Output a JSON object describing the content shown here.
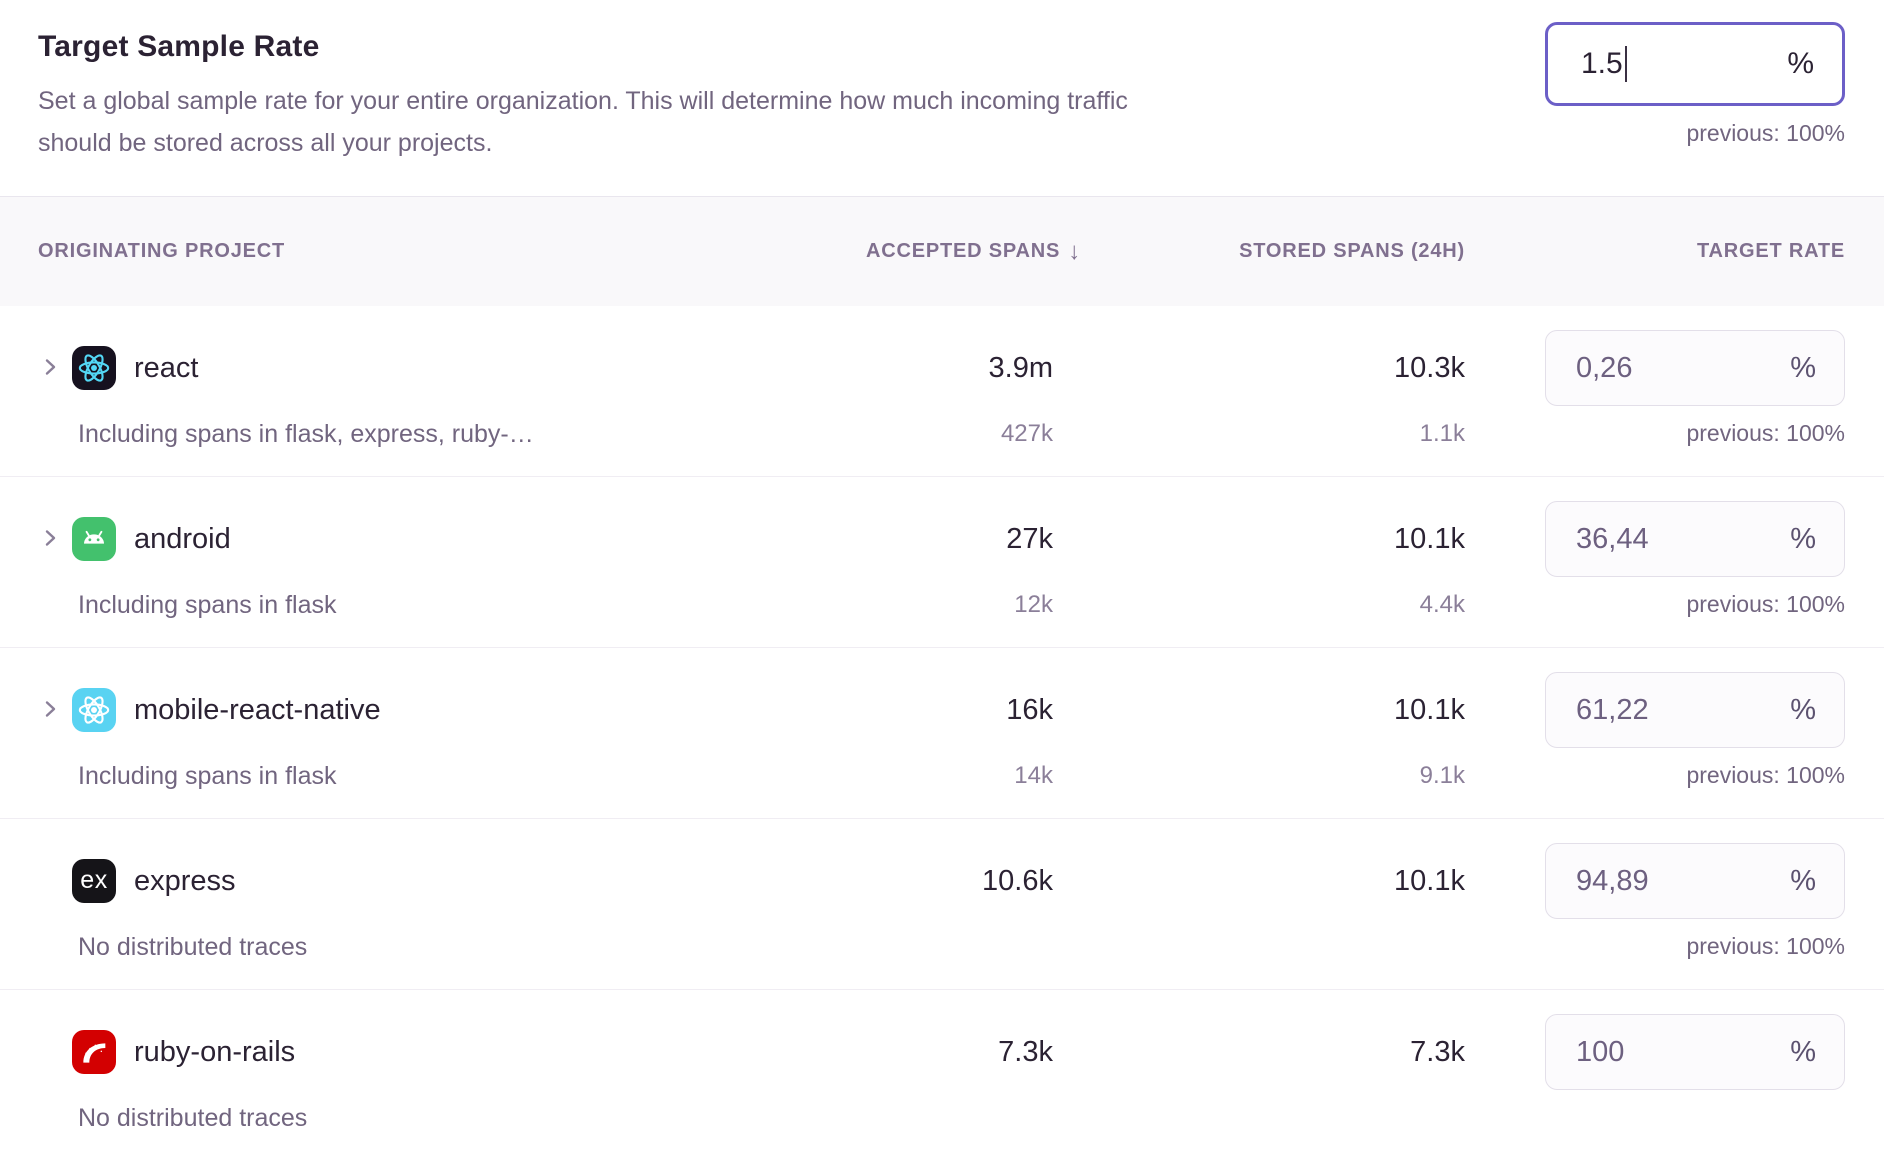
{
  "header": {
    "title": "Target Sample Rate",
    "description_line1": "Set a global sample rate for your entire organization. This will determine how much incoming traffic",
    "description_line2": "should be stored across all your projects.",
    "rate_input": {
      "value": "1.5",
      "unit": "%"
    },
    "previous": "previous: 100%"
  },
  "table": {
    "columns": {
      "project": "ORIGINATING PROJECT",
      "accepted": "ACCEPTED SPANS",
      "sort_arrow": "↓",
      "stored": "STORED SPANS (24H)",
      "rate": "TARGET RATE"
    },
    "rows": [
      {
        "name": "react",
        "platform": "react",
        "expandable": true,
        "accepted": "3.9m",
        "stored": "10.3k",
        "rate": "0,26",
        "unit": "%",
        "subtext": "Including spans in flask, express, ruby-…",
        "accepted_sub": "427k",
        "stored_sub": "1.1k",
        "previous": "previous: 100%"
      },
      {
        "name": "android",
        "platform": "android",
        "expandable": true,
        "accepted": "27k",
        "stored": "10.1k",
        "rate": "36,44",
        "unit": "%",
        "subtext": "Including spans in flask",
        "accepted_sub": "12k",
        "stored_sub": "4.4k",
        "previous": "previous: 100%"
      },
      {
        "name": "mobile-react-native",
        "platform": "react-native",
        "expandable": true,
        "accepted": "16k",
        "stored": "10.1k",
        "rate": "61,22",
        "unit": "%",
        "subtext": "Including spans in flask",
        "accepted_sub": "14k",
        "stored_sub": "9.1k",
        "previous": "previous: 100%"
      },
      {
        "name": "express",
        "platform": "express",
        "expandable": false,
        "accepted": "10.6k",
        "stored": "10.1k",
        "rate": "94,89",
        "unit": "%",
        "subtext": "No distributed traces",
        "accepted_sub": "",
        "stored_sub": "",
        "previous": "previous: 100%"
      },
      {
        "name": "ruby-on-rails",
        "platform": "rails",
        "expandable": false,
        "accepted": "7.3k",
        "stored": "7.3k",
        "rate": "100",
        "unit": "%",
        "subtext": "No distributed traces",
        "accepted_sub": "",
        "stored_sub": "",
        "previous": ""
      }
    ]
  },
  "colors": {
    "accent_focus_border": "#6c5fc7",
    "title_text": "#2b2233",
    "muted_text": "#71657f",
    "header_text": "#80708f",
    "react_icon_bg": "#16111f",
    "react_logo": "#53d7f5",
    "android_icon_bg": "#43c16d",
    "react_native_icon_bg": "#59d3f2",
    "express_icon_bg": "#151418",
    "rails_icon_bg": "#d30001"
  }
}
